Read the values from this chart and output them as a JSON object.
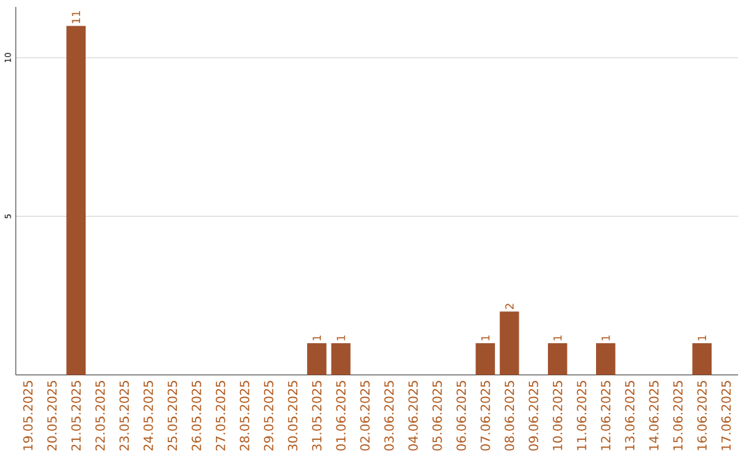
{
  "chart_data": {
    "type": "bar",
    "categories": [
      "19.05.2025",
      "20.05.2025",
      "21.05.2025",
      "22.05.2025",
      "23.05.2025",
      "24.05.2025",
      "25.05.2025",
      "26.05.2025",
      "27.05.2025",
      "28.05.2025",
      "29.05.2025",
      "30.05.2025",
      "31.05.2025",
      "01.06.2025",
      "02.06.2025",
      "03.06.2025",
      "04.06.2025",
      "05.06.2025",
      "06.06.2025",
      "07.06.2025",
      "08.06.2025",
      "09.06.2025",
      "10.06.2025",
      "11.06.2025",
      "12.06.2025",
      "13.06.2025",
      "14.06.2025",
      "15.06.2025",
      "16.06.2025",
      "17.06.2025"
    ],
    "values": [
      0,
      0,
      11,
      0,
      0,
      0,
      0,
      0,
      0,
      0,
      0,
      0,
      1,
      1,
      0,
      0,
      0,
      0,
      0,
      1,
      2,
      0,
      1,
      0,
      1,
      0,
      0,
      0,
      1,
      0
    ],
    "value_labels": [
      null,
      null,
      "11",
      null,
      null,
      null,
      null,
      null,
      null,
      null,
      null,
      null,
      "1",
      "1",
      null,
      null,
      null,
      null,
      null,
      "1",
      "2",
      null,
      "1",
      null,
      "1",
      null,
      null,
      null,
      "1",
      null
    ],
    "color": "#a0522d",
    "ylim": [
      0,
      11.6
    ],
    "yticks": [
      5,
      10
    ],
    "grid": "y"
  }
}
